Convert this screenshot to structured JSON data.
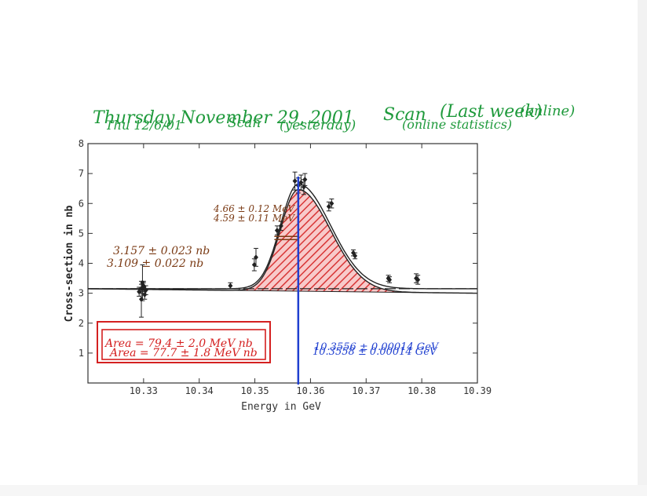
{
  "header": {
    "green_line1": "Thursday November 29, 2001",
    "green_scan1": "Scan",
    "green_lastweek": "(Last week)",
    "green_online": "(online)",
    "green_line2a": "Thu 12/6/01",
    "green_scan2": "Scan",
    "green_yesterday": "(yesterday)",
    "green_online_stats": "(online statistics)"
  },
  "annotations": {
    "left1": "3.157 ± 0.023 nb",
    "left2": "3.109 ± 0.022 nb",
    "width1": "4.66 ± 0.12 MeV",
    "width2": "4.59 ± 0.11 MeV",
    "area1": "Area = 79.4 ± 2.0 MeV nb",
    "area2": "Area = 77.7 ± 1.8 MeV nb",
    "peak1": "10.3556 ± 0.00014 GeV",
    "peak2": "10.3558 ± 0.00014 GeV"
  },
  "colors": {
    "green": "#1f9a3c",
    "brown": "#7a3a14",
    "red": "#d42020",
    "blue": "#1f3fd0",
    "curve": "#222222"
  },
  "chart_data": {
    "type": "scatter",
    "title": "",
    "xlabel": "Energy in GeV",
    "ylabel": "Cross-section in nb",
    "xlim": [
      10.32,
      10.39
    ],
    "ylim": [
      0,
      8
    ],
    "x_ticks": [
      "10.33",
      "10.34",
      "10.35",
      "10.36",
      "10.37",
      "10.38",
      "10.39"
    ],
    "y_ticks": [
      "1",
      "2",
      "3",
      "4",
      "5",
      "6",
      "7",
      "8"
    ],
    "series": [
      {
        "points": [
          {
            "x": 10.3292,
            "y": 3.05,
            "err": 0.15
          },
          {
            "x": 10.3296,
            "y": 3.15,
            "err": 0.15
          },
          {
            "x": 10.33,
            "y": 3.25,
            "err": 0.15
          },
          {
            "x": 10.3304,
            "y": 3.1,
            "err": 0.15
          },
          {
            "x": 10.3298,
            "y": 3.35,
            "err": 0.6
          },
          {
            "x": 10.3302,
            "y": 2.95,
            "err": 0.15
          },
          {
            "x": 10.3296,
            "y": 2.8,
            "err": 0.6
          },
          {
            "x": 10.33,
            "y": 3.2,
            "err": 0.15
          },
          {
            "x": 10.3456,
            "y": 3.25,
            "err": 0.1
          },
          {
            "x": 10.3499,
            "y": 3.95,
            "err": 0.2
          },
          {
            "x": 10.3502,
            "y": 4.2,
            "err": 0.3
          },
          {
            "x": 10.354,
            "y": 5.1,
            "err": 0.15
          },
          {
            "x": 10.3547,
            "y": 5.25,
            "err": 0.15
          },
          {
            "x": 10.3572,
            "y": 6.75,
            "err": 0.3
          },
          {
            "x": 10.3578,
            "y": 6.6,
            "err": 0.25
          },
          {
            "x": 10.3583,
            "y": 6.7,
            "err": 0.25
          },
          {
            "x": 10.3588,
            "y": 6.55,
            "err": 0.25
          },
          {
            "x": 10.359,
            "y": 6.8,
            "err": 0.2
          },
          {
            "x": 10.3633,
            "y": 5.9,
            "err": 0.15
          },
          {
            "x": 10.3638,
            "y": 6.0,
            "err": 0.15
          },
          {
            "x": 10.3677,
            "y": 4.35,
            "err": 0.1
          },
          {
            "x": 10.368,
            "y": 4.25,
            "err": 0.1
          },
          {
            "x": 10.374,
            "y": 3.5,
            "err": 0.1
          },
          {
            "x": 10.3742,
            "y": 3.45,
            "err": 0.1
          },
          {
            "x": 10.379,
            "y": 3.5,
            "err": 0.15
          },
          {
            "x": 10.3793,
            "y": 3.45,
            "err": 0.15
          }
        ]
      }
    ],
    "fit": {
      "background_start": 3.15,
      "background_end": 3.15,
      "background_alt_end": 3.0,
      "peak_x": 10.3578,
      "peak_height": 3.5,
      "sigma_left": 0.0032,
      "sigma_right": 0.0058
    },
    "peak_line_x": 10.3578,
    "grid": false
  }
}
